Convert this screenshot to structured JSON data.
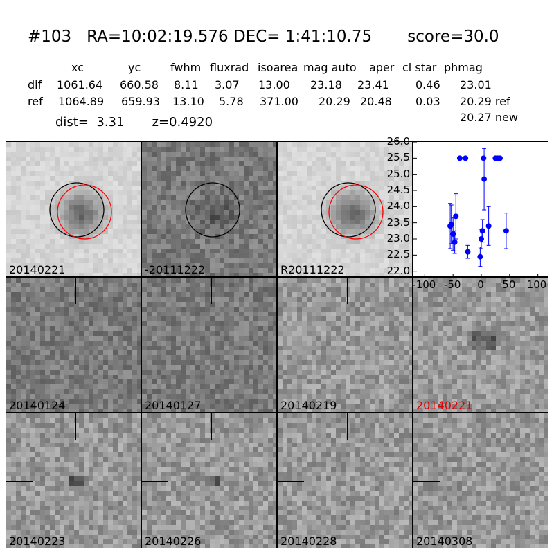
{
  "header": {
    "title": "#103   RA=10:02:19.576 DEC= 1:41:10.75       score=30.0",
    "columns": [
      "xc",
      "yc",
      "fwhm",
      "fluxrad",
      "isoarea",
      "mag auto",
      "aper",
      "cl star",
      "phmag"
    ],
    "rows": [
      {
        "label": "dif",
        "values": [
          "1061.64",
          "660.58",
          "8.11",
          "3.07",
          "13.00",
          "23.18",
          "23.41",
          "0.46",
          "23.01"
        ]
      },
      {
        "label": "ref",
        "values": [
          "1064.89",
          "659.93",
          "13.10",
          "5.78",
          "371.00",
          "20.29",
          "20.48",
          "0.03",
          "20.29 ref"
        ]
      }
    ],
    "phmag_new": "20.27 new",
    "dist_line": "dist=  3.31       z=0.4920"
  },
  "panels": [
    {
      "label": "20140221",
      "tone": "light",
      "circles": "both",
      "label_red": false
    },
    {
      "label": "-20111222",
      "tone": "dark",
      "circles": "black",
      "label_red": false
    },
    {
      "label": "R20111222",
      "tone": "light",
      "circles": "both",
      "label_red": false
    },
    {
      "label": "20140124",
      "tone": "dark",
      "circles": "none",
      "label_red": false
    },
    {
      "label": "20140127",
      "tone": "dark",
      "circles": "none",
      "label_red": false
    },
    {
      "label": "20140219",
      "tone": "mid",
      "circles": "none",
      "label_red": false
    },
    {
      "label": "20140221",
      "tone": "mid",
      "circles": "none",
      "label_red": true
    },
    {
      "label": "20140223",
      "tone": "mid",
      "circles": "none",
      "label_red": false
    },
    {
      "label": "20140226",
      "tone": "mid",
      "circles": "none",
      "label_red": false
    },
    {
      "label": "20140228",
      "tone": "mid",
      "circles": "none",
      "label_red": false
    },
    {
      "label": "20140308",
      "tone": "mid",
      "circles": "none",
      "label_red": false
    }
  ],
  "lightcurve": {
    "type": "scatter",
    "xlim": [
      -120,
      120
    ],
    "ylim": [
      26.0,
      21.8
    ],
    "xticks": [
      "-100",
      "-50",
      "0",
      "50",
      "100"
    ],
    "xtick_values": [
      -100,
      -50,
      0,
      50,
      100
    ],
    "yticks": [
      "22.0",
      "22.5",
      "23.0",
      "23.5",
      "24.0",
      "24.5",
      "25.0",
      "25.5",
      "26.0"
    ],
    "ytick_values": [
      22.0,
      22.5,
      23.0,
      23.5,
      24.0,
      24.5,
      25.0,
      25.5,
      26.0
    ],
    "color": "#0000ff",
    "points": [
      {
        "x": -55,
        "y": 23.4,
        "err": 0.7
      },
      {
        "x": -53,
        "y": 23.45,
        "err": 0.6
      },
      {
        "x": -50,
        "y": 23.15,
        "err": 0.5
      },
      {
        "x": -47,
        "y": 22.9,
        "err": 0.35
      },
      {
        "x": -45,
        "y": 23.7,
        "err": 0.7
      },
      {
        "x": -38,
        "y": 25.5,
        "err": 0
      },
      {
        "x": -28,
        "y": 25.5,
        "err": 0
      },
      {
        "x": -24,
        "y": 22.6,
        "err": 0.2
      },
      {
        "x": -2,
        "y": 22.45,
        "err": 0.3
      },
      {
        "x": 0,
        "y": 23.0,
        "err": 0.3
      },
      {
        "x": 2,
        "y": 23.25,
        "err": 0.35
      },
      {
        "x": 4,
        "y": 25.5,
        "err": 0
      },
      {
        "x": 5,
        "y": 24.85,
        "err": 0.95
      },
      {
        "x": 13,
        "y": 23.4,
        "err": 0.6
      },
      {
        "x": 25,
        "y": 25.5,
        "err": 0
      },
      {
        "x": 28,
        "y": 25.5,
        "err": 0
      },
      {
        "x": 31,
        "y": 25.5,
        "err": 0
      },
      {
        "x": 33,
        "y": 25.5,
        "err": 0
      },
      {
        "x": 44,
        "y": 23.25,
        "err": 0.55
      }
    ]
  }
}
